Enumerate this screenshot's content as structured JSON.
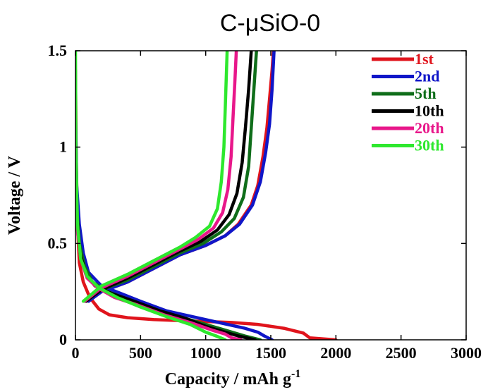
{
  "chart_data": {
    "type": "line",
    "title": "C-μSiO-0",
    "xlabel": "Capacity / mAh g",
    "xlabel_superscript": "-1",
    "ylabel": "Voltage / V",
    "xlim": [
      0,
      3000
    ],
    "ylim": [
      0,
      1.5
    ],
    "x_ticks": [
      0,
      500,
      1000,
      1500,
      2000,
      2500,
      3000
    ],
    "x_tick_labels": [
      "0",
      "500",
      "1000",
      "1500",
      "2000",
      "2500",
      "3000"
    ],
    "y_ticks": [
      0,
      0.5,
      1,
      1.5
    ],
    "y_tick_labels": [
      "0",
      "0.5",
      "1",
      "1.5"
    ],
    "grid": false,
    "legend": "top-right",
    "series": [
      {
        "name": "1st",
        "color": "#e0141c",
        "discharge": [
          [
            0,
            1.4
          ],
          [
            5,
            1.0
          ],
          [
            15,
            0.6
          ],
          [
            30,
            0.4
          ],
          [
            60,
            0.3
          ],
          [
            110,
            0.22
          ],
          [
            180,
            0.16
          ],
          [
            260,
            0.13
          ],
          [
            400,
            0.115
          ],
          [
            600,
            0.105
          ],
          [
            800,
            0.1
          ],
          [
            1000,
            0.095
          ],
          [
            1200,
            0.09
          ],
          [
            1400,
            0.08
          ],
          [
            1600,
            0.06
          ],
          [
            1750,
            0.035
          ],
          [
            1800,
            0.01
          ],
          [
            2000,
            0.0
          ]
        ],
        "charge": [
          [
            100,
            0.2
          ],
          [
            200,
            0.25
          ],
          [
            400,
            0.3
          ],
          [
            600,
            0.37
          ],
          [
            800,
            0.44
          ],
          [
            1000,
            0.49
          ],
          [
            1150,
            0.54
          ],
          [
            1250,
            0.6
          ],
          [
            1350,
            0.7
          ],
          [
            1400,
            0.8
          ],
          [
            1440,
            0.95
          ],
          [
            1470,
            1.1
          ],
          [
            1490,
            1.25
          ],
          [
            1510,
            1.4
          ],
          [
            1520,
            1.5
          ]
        ]
      },
      {
        "name": "2nd",
        "color": "#1016c8",
        "discharge": [
          [
            0,
            1.2
          ],
          [
            10,
            0.8
          ],
          [
            30,
            0.6
          ],
          [
            60,
            0.45
          ],
          [
            100,
            0.35
          ],
          [
            200,
            0.28
          ],
          [
            350,
            0.24
          ],
          [
            500,
            0.2
          ],
          [
            700,
            0.15
          ],
          [
            900,
            0.12
          ],
          [
            1100,
            0.09
          ],
          [
            1300,
            0.06
          ],
          [
            1400,
            0.04
          ],
          [
            1450,
            0.02
          ],
          [
            1510,
            0.0
          ]
        ],
        "charge": [
          [
            100,
            0.2
          ],
          [
            200,
            0.25
          ],
          [
            400,
            0.3
          ],
          [
            600,
            0.37
          ],
          [
            800,
            0.44
          ],
          [
            1000,
            0.49
          ],
          [
            1150,
            0.54
          ],
          [
            1260,
            0.6
          ],
          [
            1360,
            0.7
          ],
          [
            1420,
            0.82
          ],
          [
            1460,
            0.97
          ],
          [
            1490,
            1.12
          ],
          [
            1510,
            1.3
          ],
          [
            1525,
            1.5
          ]
        ]
      },
      {
        "name": "5th",
        "color": "#0f6e1a",
        "discharge": [
          [
            0,
            1.0
          ],
          [
            10,
            0.7
          ],
          [
            30,
            0.5
          ],
          [
            70,
            0.38
          ],
          [
            130,
            0.3
          ],
          [
            250,
            0.25
          ],
          [
            400,
            0.21
          ],
          [
            600,
            0.16
          ],
          [
            800,
            0.12
          ],
          [
            1000,
            0.08
          ],
          [
            1150,
            0.05
          ],
          [
            1300,
            0.02
          ],
          [
            1420,
            0.0
          ]
        ],
        "charge": [
          [
            80,
            0.2
          ],
          [
            200,
            0.26
          ],
          [
            400,
            0.31
          ],
          [
            600,
            0.38
          ],
          [
            800,
            0.45
          ],
          [
            980,
            0.5
          ],
          [
            1120,
            0.56
          ],
          [
            1220,
            0.63
          ],
          [
            1290,
            0.74
          ],
          [
            1330,
            0.9
          ],
          [
            1350,
            1.1
          ],
          [
            1370,
            1.3
          ],
          [
            1390,
            1.5
          ]
        ]
      },
      {
        "name": "10th",
        "color": "#000000",
        "discharge": [
          [
            0,
            0.9
          ],
          [
            10,
            0.65
          ],
          [
            35,
            0.45
          ],
          [
            80,
            0.34
          ],
          [
            150,
            0.28
          ],
          [
            280,
            0.24
          ],
          [
            450,
            0.2
          ],
          [
            650,
            0.15
          ],
          [
            850,
            0.11
          ],
          [
            1000,
            0.07
          ],
          [
            1150,
            0.04
          ],
          [
            1250,
            0.02
          ],
          [
            1380,
            0.0
          ]
        ],
        "charge": [
          [
            80,
            0.2
          ],
          [
            200,
            0.26
          ],
          [
            400,
            0.32
          ],
          [
            600,
            0.39
          ],
          [
            800,
            0.46
          ],
          [
            960,
            0.51
          ],
          [
            1090,
            0.57
          ],
          [
            1180,
            0.65
          ],
          [
            1240,
            0.76
          ],
          [
            1280,
            0.92
          ],
          [
            1305,
            1.1
          ],
          [
            1330,
            1.3
          ],
          [
            1350,
            1.5
          ]
        ]
      },
      {
        "name": "20th",
        "color": "#e8178a",
        "discharge": [
          [
            0,
            0.85
          ],
          [
            10,
            0.6
          ],
          [
            40,
            0.42
          ],
          [
            90,
            0.32
          ],
          [
            170,
            0.27
          ],
          [
            300,
            0.22
          ],
          [
            480,
            0.18
          ],
          [
            680,
            0.13
          ],
          [
            880,
            0.09
          ],
          [
            1050,
            0.05
          ],
          [
            1150,
            0.03
          ],
          [
            1200,
            0.01
          ],
          [
            1270,
            0.0
          ]
        ],
        "charge": [
          [
            70,
            0.2
          ],
          [
            200,
            0.27
          ],
          [
            400,
            0.33
          ],
          [
            600,
            0.4
          ],
          [
            800,
            0.47
          ],
          [
            940,
            0.52
          ],
          [
            1060,
            0.58
          ],
          [
            1130,
            0.66
          ],
          [
            1170,
            0.78
          ],
          [
            1195,
            0.95
          ],
          [
            1210,
            1.15
          ],
          [
            1225,
            1.35
          ],
          [
            1235,
            1.5
          ]
        ]
      },
      {
        "name": "30th",
        "color": "#2ee82e",
        "discharge": [
          [
            0,
            1.5
          ],
          [
            3,
            1.0
          ],
          [
            15,
            0.6
          ],
          [
            40,
            0.42
          ],
          [
            90,
            0.33
          ],
          [
            180,
            0.27
          ],
          [
            320,
            0.22
          ],
          [
            500,
            0.17
          ],
          [
            700,
            0.12
          ],
          [
            880,
            0.08
          ],
          [
            1000,
            0.04
          ],
          [
            1080,
            0.02
          ],
          [
            1150,
            0.0
          ]
        ],
        "charge": [
          [
            60,
            0.2
          ],
          [
            200,
            0.28
          ],
          [
            400,
            0.34
          ],
          [
            600,
            0.41
          ],
          [
            800,
            0.48
          ],
          [
            920,
            0.53
          ],
          [
            1030,
            0.59
          ],
          [
            1090,
            0.68
          ],
          [
            1120,
            0.82
          ],
          [
            1140,
            1.0
          ],
          [
            1150,
            1.2
          ],
          [
            1160,
            1.4
          ],
          [
            1165,
            1.5
          ]
        ]
      }
    ]
  }
}
